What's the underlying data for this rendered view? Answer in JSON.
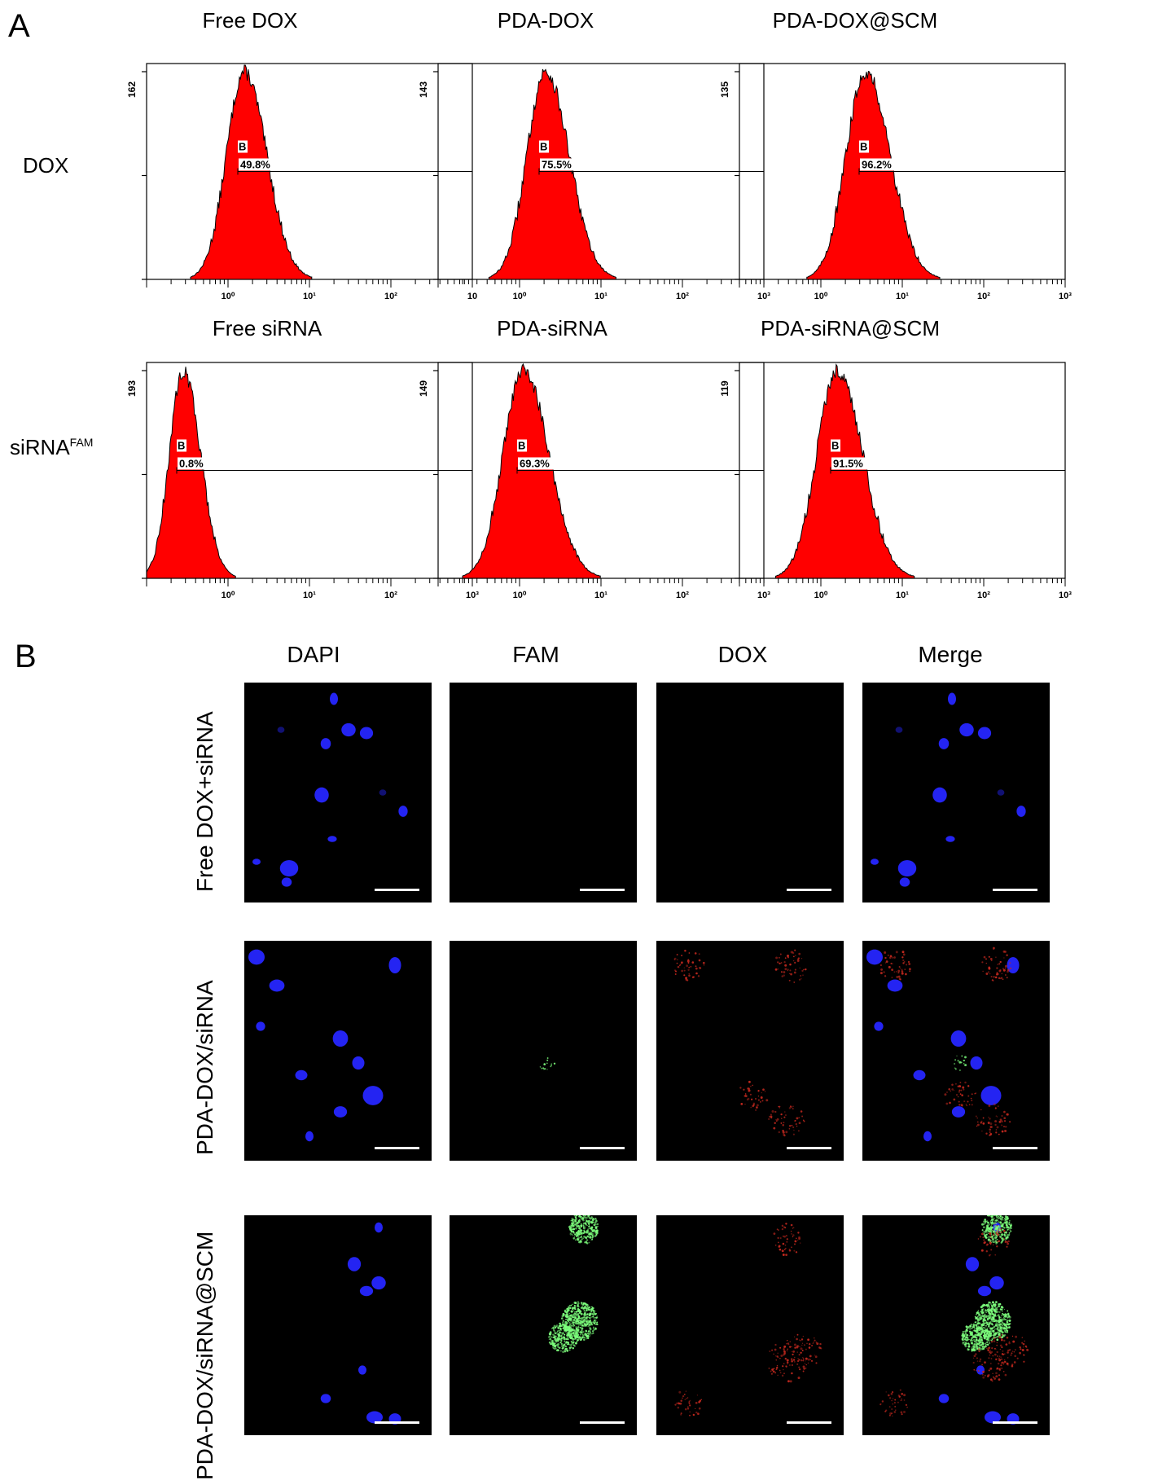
{
  "panel_a": {
    "label": "A",
    "row_labels": [
      "DOX",
      "siRNA",
      "FAM"
    ],
    "column_titles_top": [
      "Free DOX",
      "PDA-DOX",
      "PDA-DOX@SCM"
    ],
    "column_titles_bottom": [
      "Free siRNA",
      "PDA-siRNA",
      "PDA-siRNA@SCM"
    ],
    "gate_name": "B",
    "x_tick_labels": [
      "10⁰",
      "10¹",
      "10²",
      "10³"
    ],
    "x_tick_labels_first": [
      "10⁰",
      "10¹",
      "10²",
      "10"
    ],
    "colors": {
      "histogram_fill": "#ff0000",
      "histogram_edge": "#000000"
    }
  },
  "chart_data": [
    {
      "type": "histogram",
      "title": "Free DOX",
      "row": "DOX",
      "y_max_label": "162",
      "gate_label": "B",
      "gate_percent": "49.8%",
      "x_scale": "log",
      "x_range": [
        0.1,
        1000
      ],
      "peak_log10": 0.2,
      "spread_log10": 0.22
    },
    {
      "type": "histogram",
      "title": "PDA-DOX",
      "row": "DOX",
      "y_max_label": "143",
      "gate_label": "B",
      "gate_percent": "75.5%",
      "x_scale": "log",
      "x_range": [
        0.1,
        1000
      ],
      "peak_log10": 0.32,
      "spread_log10": 0.23
    },
    {
      "type": "histogram",
      "title": "PDA-DOX@SCM",
      "row": "DOX",
      "y_max_label": "135",
      "gate_label": "B",
      "gate_percent": "96.2%",
      "x_scale": "log",
      "x_range": [
        0.1,
        1000
      ],
      "peak_log10": 0.55,
      "spread_log10": 0.24
    },
    {
      "type": "histogram",
      "title": "Free siRNA",
      "row": "siRNA FAM",
      "y_max_label": "193",
      "gate_label": "B",
      "gate_percent": "0.8%",
      "x_scale": "log",
      "x_range": [
        0.1,
        1000
      ],
      "peak_log10": -0.55,
      "spread_log10": 0.17
    },
    {
      "type": "histogram",
      "title": "PDA-siRNA",
      "row": "siRNA FAM",
      "y_max_label": "149",
      "gate_label": "B",
      "gate_percent": "69.3%",
      "x_scale": "log",
      "x_range": [
        0.1,
        1000
      ],
      "peak_log10": 0.05,
      "spread_log10": 0.25
    },
    {
      "type": "histogram",
      "title": "PDA-siRNA@SCM",
      "row": "siRNA FAM",
      "y_max_label": "119",
      "gate_label": "B",
      "gate_percent": "91.5%",
      "x_scale": "log",
      "x_range": [
        0.1,
        1000
      ],
      "peak_log10": 0.2,
      "spread_log10": 0.25
    }
  ],
  "panel_b": {
    "label": "B",
    "channels": [
      "DAPI",
      "FAM",
      "DOX",
      "Merge"
    ],
    "groups": [
      "Free DOX+siRNA",
      "PDA-DOX/siRNA",
      "PDA-DOX/siRNA@SCM"
    ],
    "colors": {
      "background": "#000000",
      "dapi": "#2626ff",
      "fam": "#7dff7d",
      "dox": "#c0281e",
      "scale_bar": "#ffffff"
    }
  }
}
